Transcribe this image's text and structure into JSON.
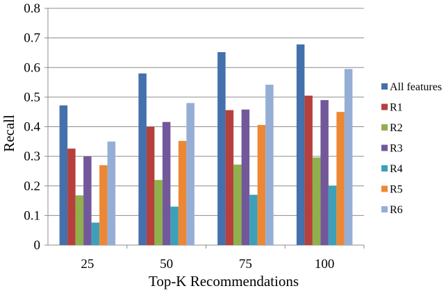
{
  "chart_data": {
    "type": "bar",
    "title": "",
    "xlabel": "Top-K Recommendations",
    "ylabel": "Recall",
    "categories": [
      "25",
      "50",
      "75",
      "100"
    ],
    "ylim": [
      0,
      0.8
    ],
    "yticks": [
      "0",
      "0.1",
      "0.2",
      "0.3",
      "0.4",
      "0.5",
      "0.6",
      "0.7",
      "0.8"
    ],
    "grid": true,
    "legend_position": "right",
    "series": [
      {
        "name": "All features",
        "color": "#4470ac",
        "values": [
          0.472,
          0.58,
          0.652,
          0.678
        ]
      },
      {
        "name": "R1",
        "color": "#b5403d",
        "values": [
          0.326,
          0.4,
          0.456,
          0.505
        ]
      },
      {
        "name": "R2",
        "color": "#8fb04a",
        "values": [
          0.168,
          0.22,
          0.272,
          0.296
        ]
      },
      {
        "name": "R3",
        "color": "#72589a",
        "values": [
          0.3,
          0.416,
          0.458,
          0.49
        ]
      },
      {
        "name": "R4",
        "color": "#3da0b8",
        "values": [
          0.076,
          0.13,
          0.17,
          0.2
        ]
      },
      {
        "name": "R5",
        "color": "#ec8834",
        "values": [
          0.27,
          0.352,
          0.406,
          0.45
        ]
      },
      {
        "name": "R6",
        "color": "#95aed6",
        "values": [
          0.35,
          0.48,
          0.542,
          0.595
        ]
      }
    ]
  }
}
